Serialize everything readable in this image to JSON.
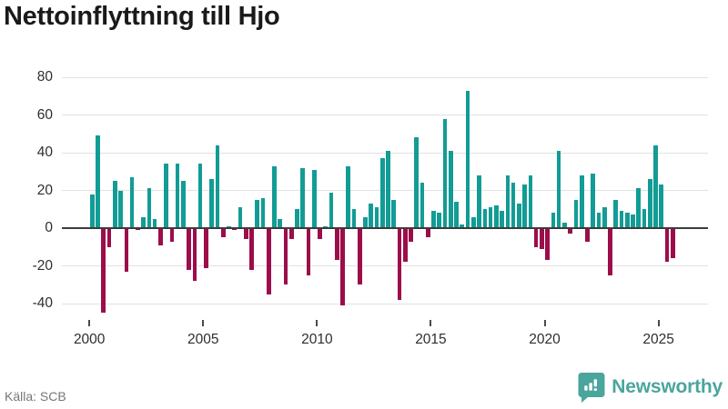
{
  "title": "Nettoinflyttning till Hjo",
  "source": "Källa: SCB",
  "branding": {
    "name": "Newsworthy",
    "icon": "newsworthy-speech-bubble-bar-chart-icon"
  },
  "colors": {
    "positive": "#129c95",
    "negative": "#9c0d4a",
    "grid": "#e2e2e2",
    "zero_line": "#3c3c3c",
    "axis_text": "#2e2e2e",
    "title_text": "#1a1a1a",
    "source_text": "#767676",
    "brand": "#4aa59d",
    "background": "#ffffff"
  },
  "chart_data": {
    "type": "bar",
    "title": "Nettoinflyttning till Hjo",
    "frequency": "quarterly",
    "x_start": "2000-Q1",
    "x_end": "2025-Q3",
    "values": [
      18,
      49,
      -45,
      -10,
      25,
      20,
      -23,
      27,
      -1,
      6,
      21,
      5,
      -9,
      34,
      -7,
      34,
      25,
      -22,
      -28,
      34,
      -21,
      26,
      44,
      -5,
      1,
      -1,
      11,
      -6,
      -22,
      15,
      16,
      -35,
      33,
      5,
      -30,
      -6,
      10,
      32,
      -25,
      31,
      -6,
      1,
      19,
      -17,
      -41,
      33,
      10,
      -30,
      6,
      13,
      11,
      37,
      41,
      15,
      -38,
      -18,
      -7,
      48,
      24,
      -5,
      9,
      8,
      58,
      41,
      14,
      2,
      73,
      6,
      28,
      10,
      11,
      12,
      9,
      28,
      24,
      13,
      23,
      28,
      -10,
      -11,
      -17,
      8,
      41,
      3,
      -3,
      15,
      28,
      -7,
      29,
      8,
      11,
      -25,
      15,
      9,
      8,
      7,
      21,
      10,
      26,
      44,
      23,
      -18,
      -16
    ],
    "yticks": [
      {
        "value": 80,
        "label": "80"
      },
      {
        "value": 60,
        "label": "60"
      },
      {
        "value": 40,
        "label": "40"
      },
      {
        "value": 20,
        "label": "20"
      },
      {
        "value": 0,
        "label": "0"
      },
      {
        "value": -20,
        "label": "-20"
      },
      {
        "value": -40,
        "label": "-40"
      }
    ],
    "xticks": [
      {
        "year": 2000,
        "label": "2000"
      },
      {
        "year": 2005,
        "label": "2005"
      },
      {
        "year": 2010,
        "label": "2010"
      },
      {
        "year": 2015,
        "label": "2015"
      },
      {
        "year": 2020,
        "label": "2020"
      },
      {
        "year": 2025,
        "label": "2025"
      }
    ],
    "ylim": [
      -52,
      85
    ],
    "grid": "horizontal-only",
    "legend": "none",
    "bar_colors_by_sign": {
      "positive": "#129c95",
      "negative": "#9c0d4a"
    }
  }
}
